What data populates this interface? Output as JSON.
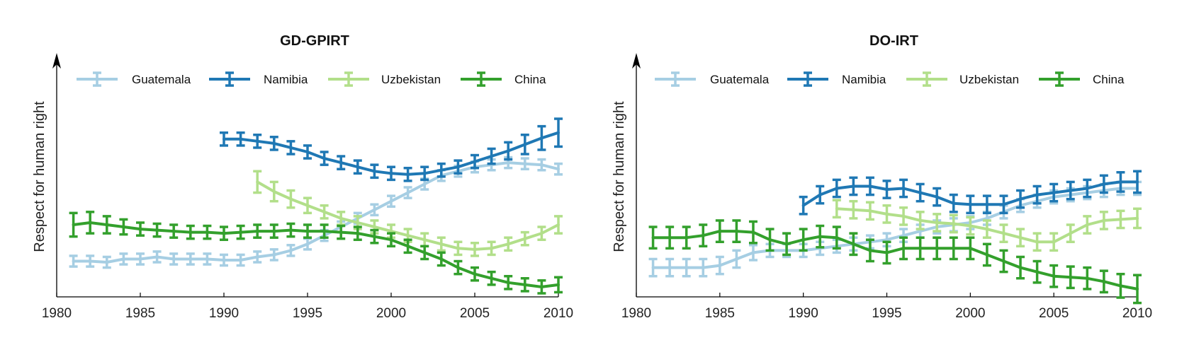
{
  "colors": {
    "guatemala": "#a6cee3",
    "namibia": "#1f78b4",
    "uzbekistan": "#b2df8a",
    "china": "#33a02c",
    "axis": "#000000"
  },
  "chart_data": [
    {
      "type": "line",
      "title": "GD-GPIRT",
      "xlabel": "",
      "ylabel": "Respect for human right",
      "xlim": [
        1980,
        2010
      ],
      "ylim": [
        0,
        100
      ],
      "xticks": [
        1980,
        1985,
        1990,
        1995,
        2000,
        2005,
        2010
      ],
      "legend": "top",
      "series": [
        {
          "name": "Guatemala",
          "color_key": "guatemala",
          "x": [
            1981,
            1982,
            1983,
            1984,
            1985,
            1986,
            1987,
            1988,
            1989,
            1990,
            1991,
            1992,
            1993,
            1994,
            1995,
            1996,
            1997,
            1998,
            1999,
            2000,
            2001,
            2002,
            2003,
            2004,
            2005,
            2006,
            2007,
            2008,
            2009,
            2010
          ],
          "y": [
            16,
            16,
            15.5,
            17,
            17,
            18,
            17,
            17,
            17,
            16.5,
            16.5,
            18,
            19,
            21,
            24,
            28,
            32,
            36,
            40,
            44,
            48,
            52,
            56,
            58,
            60,
            61,
            62,
            61.5,
            61,
            59
          ],
          "err": [
            2.5,
            2.5,
            2.5,
            2.5,
            2.5,
            2.5,
            2.5,
            2.5,
            2.5,
            2.5,
            2.5,
            2.5,
            2.5,
            2.5,
            2.5,
            2.5,
            2.5,
            2.5,
            2.5,
            2.5,
            2.5,
            2.5,
            2.5,
            2.5,
            2.5,
            2.5,
            2.5,
            2.5,
            2.5,
            2.5
          ]
        },
        {
          "name": "Namibia",
          "color_key": "namibia",
          "x": [
            1990,
            1991,
            1992,
            1993,
            1994,
            1995,
            1996,
            1997,
            1998,
            1999,
            2000,
            2001,
            2002,
            2003,
            2004,
            2005,
            2006,
            2007,
            2008,
            2009,
            2010
          ],
          "y": [
            73,
            73,
            72,
            71,
            69,
            67,
            64,
            62,
            60,
            58,
            57,
            56.5,
            57,
            58.5,
            60,
            62.5,
            65,
            67.5,
            70.5,
            73.5,
            76
          ],
          "err": [
            3,
            3,
            3,
            3,
            3,
            3,
            3,
            3,
            3,
            3,
            3,
            3,
            3,
            3,
            3,
            3,
            3.5,
            4,
            4.5,
            5.5,
            6.5
          ]
        },
        {
          "name": "Uzbekistan",
          "color_key": "uzbekistan",
          "x": [
            1992,
            1993,
            1994,
            1995,
            1996,
            1997,
            1998,
            1999,
            2000,
            2001,
            2002,
            2003,
            2004,
            2005,
            2006,
            2007,
            2008,
            2009,
            2010
          ],
          "y": [
            53,
            48.5,
            45,
            42,
            39,
            36,
            34,
            32,
            30,
            28,
            26,
            24,
            22,
            21.5,
            22,
            24,
            26.5,
            29,
            33
          ],
          "err": [
            5,
            4.5,
            4,
            3.5,
            3,
            3,
            3,
            3,
            3,
            3,
            3,
            3,
            3,
            3,
            3,
            3,
            3,
            3,
            4
          ]
        },
        {
          "name": "China",
          "color_key": "china",
          "x": [
            1981,
            1982,
            1983,
            1984,
            1985,
            1986,
            1987,
            1988,
            1989,
            1990,
            1991,
            1992,
            1993,
            1994,
            1995,
            1996,
            1997,
            1998,
            1999,
            2000,
            2001,
            2002,
            2003,
            2004,
            2005,
            2006,
            2007,
            2008,
            2009,
            2010
          ],
          "y": [
            33,
            34,
            33,
            32,
            31,
            30.5,
            30,
            29.5,
            29.5,
            29,
            29.5,
            30,
            30,
            30.5,
            30,
            30,
            29.5,
            29,
            27.5,
            26,
            23,
            20,
            17,
            13,
            10,
            8,
            6,
            5,
            4,
            5
          ],
          "err": [
            5.5,
            5,
            4,
            3.5,
            3,
            3,
            3,
            3,
            3,
            3,
            3,
            3,
            3,
            3,
            3,
            3,
            3,
            3,
            3,
            3,
            3,
            3,
            3,
            3,
            3,
            3,
            3,
            3,
            3,
            3.5
          ]
        }
      ]
    },
    {
      "type": "line",
      "title": "DO-IRT",
      "xlabel": "",
      "ylabel": "Respect for human right",
      "xlim": [
        1980,
        2010
      ],
      "ylim": [
        0,
        100
      ],
      "xticks": [
        1980,
        1985,
        1990,
        1995,
        2000,
        2005,
        2010
      ],
      "legend": "top",
      "series": [
        {
          "name": "Guatemala",
          "color_key": "guatemala",
          "x": [
            1981,
            1982,
            1983,
            1984,
            1985,
            1986,
            1987,
            1988,
            1989,
            1990,
            1991,
            1992,
            1993,
            1994,
            1995,
            1996,
            1997,
            1998,
            1999,
            2000,
            2001,
            2002,
            2003,
            2004,
            2005,
            2006,
            2007,
            2008,
            2009,
            2010
          ],
          "y": [
            13,
            13,
            13,
            13,
            14,
            17,
            20,
            21,
            21,
            21,
            22,
            23,
            24,
            25,
            26,
            28,
            30,
            32,
            33,
            34,
            36,
            39,
            42,
            44,
            46,
            47,
            48,
            49,
            50,
            50
          ],
          "err": [
            4,
            4,
            4,
            4,
            4,
            4,
            3.5,
            3,
            3,
            3,
            3,
            3,
            3,
            3,
            3,
            3,
            3,
            3,
            3,
            3,
            3,
            3,
            3,
            3,
            3,
            3,
            3,
            3,
            3,
            3
          ]
        },
        {
          "name": "Namibia",
          "color_key": "namibia",
          "x": [
            1990,
            1991,
            1992,
            1993,
            1994,
            1995,
            1996,
            1997,
            1998,
            1999,
            2000,
            2001,
            2002,
            2003,
            2004,
            2005,
            2006,
            2007,
            2008,
            2009,
            2010
          ],
          "y": [
            42,
            47,
            50,
            51,
            51,
            49.5,
            50,
            48,
            46,
            43,
            42.5,
            42.5,
            42.5,
            45,
            47,
            48,
            49,
            50,
            52,
            53,
            53
          ],
          "err": [
            4,
            4,
            4,
            4,
            4,
            4,
            4,
            4,
            4,
            4,
            4,
            4,
            4,
            4,
            4,
            4,
            4,
            4,
            4,
            4.5,
            5
          ]
        },
        {
          "name": "Uzbekistan",
          "color_key": "uzbekistan",
          "x": [
            1992,
            1993,
            1994,
            1995,
            1996,
            1997,
            1998,
            1999,
            2000,
            2001,
            2002,
            2003,
            2004,
            2005,
            2006,
            2007,
            2008,
            2009,
            2010
          ],
          "y": [
            40.5,
            40,
            39.5,
            38,
            37,
            35,
            34,
            33.5,
            32.5,
            31,
            29,
            27,
            25,
            25,
            29,
            33,
            35,
            35.5,
            36
          ],
          "err": [
            4,
            4,
            4,
            4,
            4,
            4,
            4,
            4,
            4,
            4,
            4,
            4,
            4,
            4,
            4,
            4,
            4,
            4,
            4.5
          ]
        },
        {
          "name": "China",
          "color_key": "china",
          "x": [
            1981,
            1982,
            1983,
            1984,
            1985,
            1986,
            1987,
            1988,
            1989,
            1990,
            1991,
            1992,
            1993,
            1994,
            1995,
            1996,
            1997,
            1998,
            1999,
            2000,
            2001,
            2002,
            2003,
            2004,
            2005,
            2006,
            2007,
            2008,
            2009,
            2010
          ],
          "y": [
            27,
            27,
            27,
            28,
            30,
            30,
            29.5,
            26,
            24,
            26,
            27.5,
            27,
            24,
            21,
            20,
            22,
            22,
            22,
            22,
            22,
            19,
            16,
            13,
            11,
            9,
            8.5,
            8,
            6.5,
            4.5,
            3
          ],
          "err": [
            5,
            5,
            5,
            5,
            5,
            5,
            5,
            5,
            5,
            5,
            5,
            5,
            5,
            5,
            5,
            5,
            5,
            5,
            5,
            5,
            5,
            5,
            5,
            5,
            5,
            5,
            5,
            5,
            5.5,
            6.5
          ]
        }
      ]
    }
  ]
}
